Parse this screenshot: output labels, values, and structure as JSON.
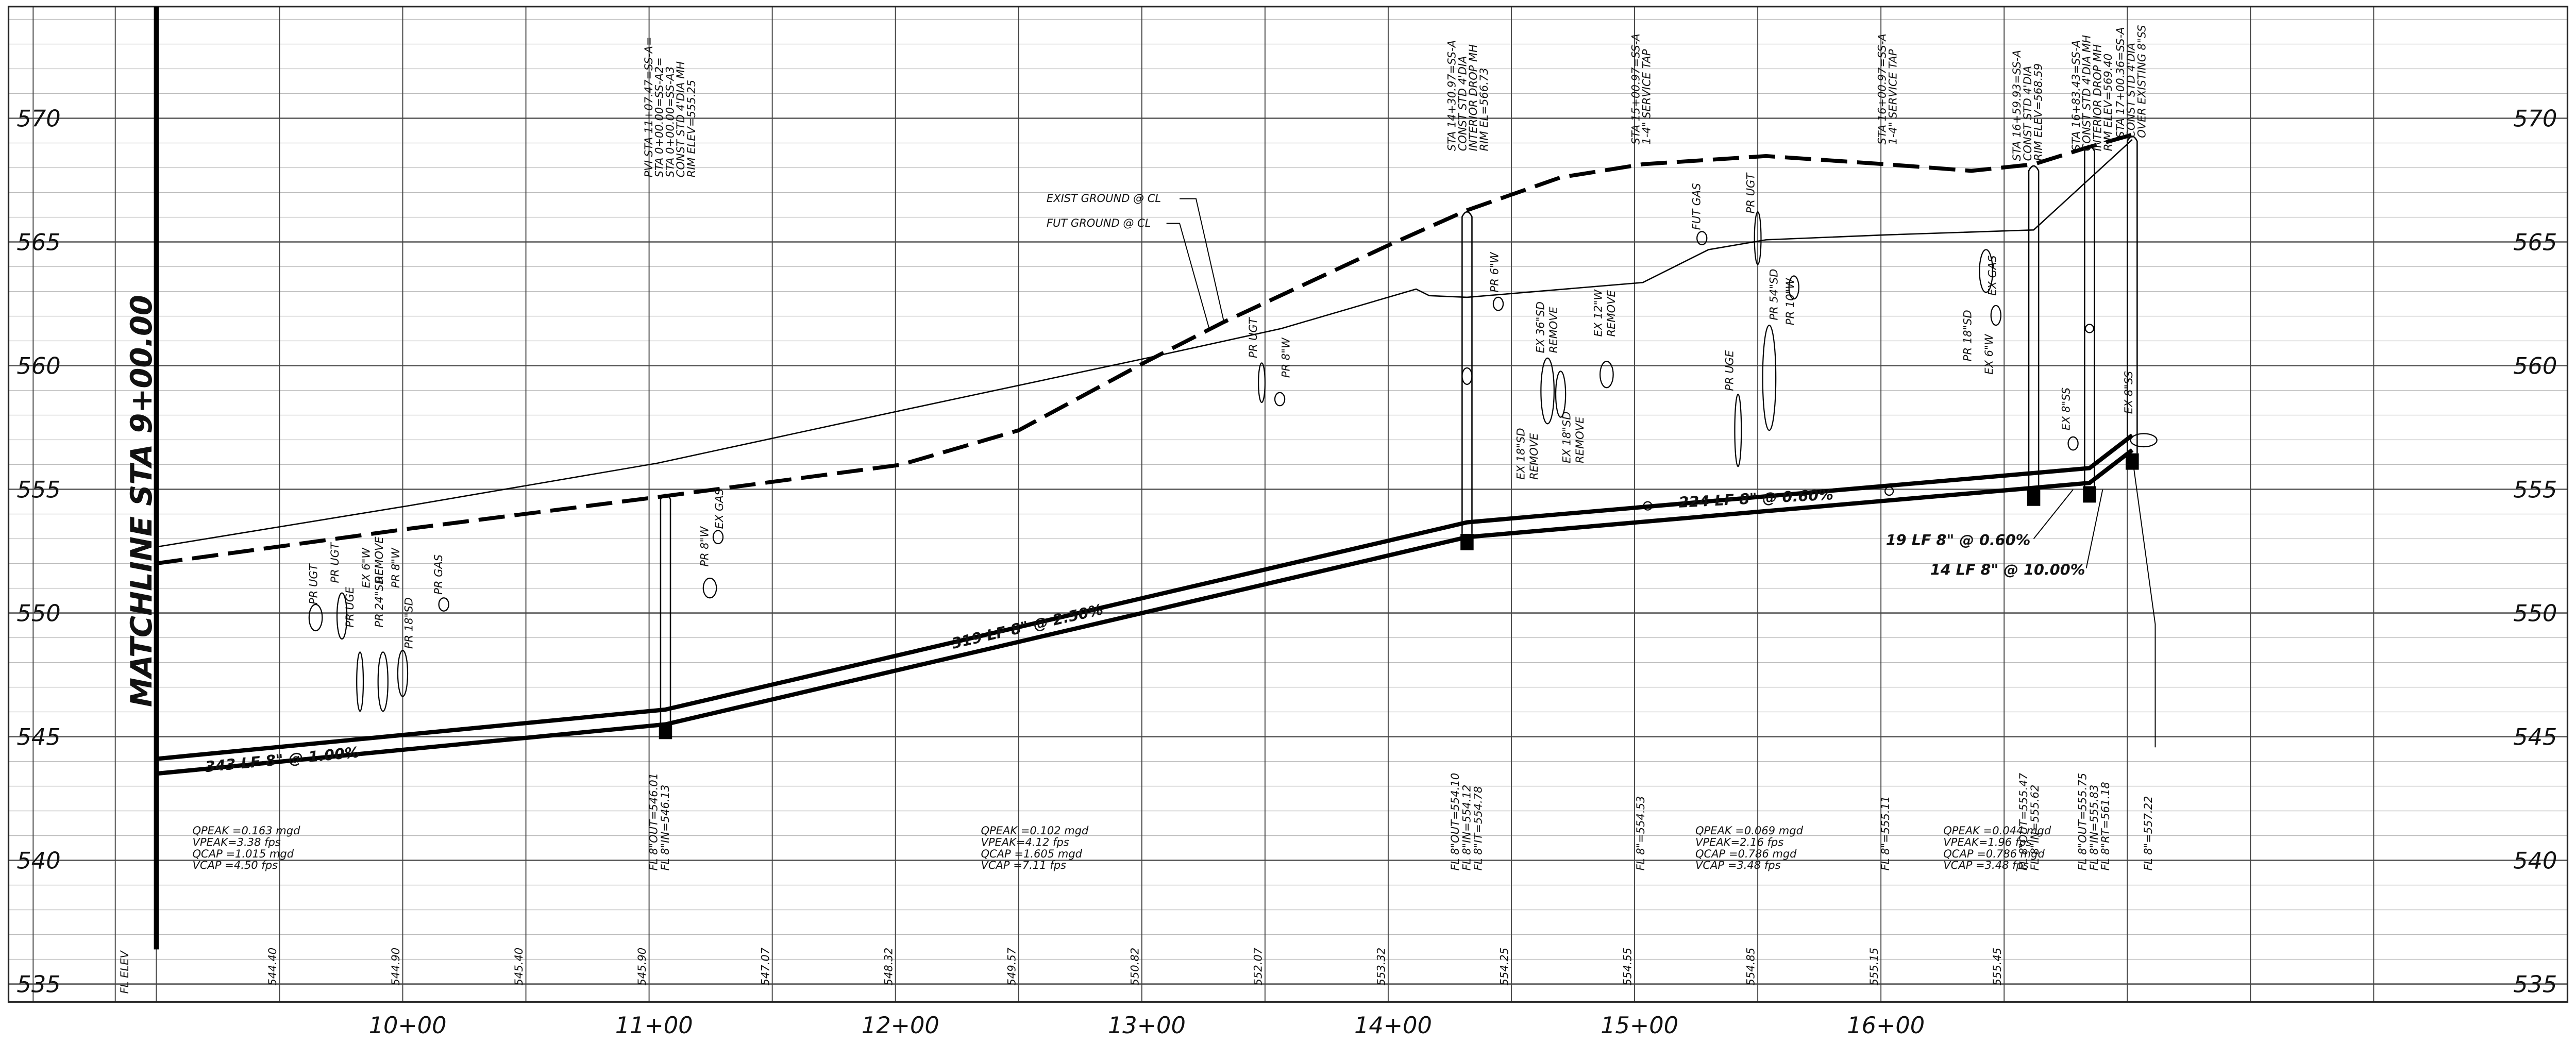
{
  "elevations": [
    570,
    565,
    560,
    555,
    550,
    545,
    540,
    535
  ],
  "stations": [
    "10+00",
    "11+00",
    "12+00",
    "13+00",
    "14+00",
    "15+00",
    "16+00"
  ],
  "fl_elev_header": "FL ELEV",
  "fl_elevations": [
    "544.40",
    "544.90",
    "545.40",
    "545.90",
    "547.07",
    "548.32",
    "549.57",
    "550.82",
    "552.07",
    "553.32",
    "554.25",
    "554.55",
    "554.85",
    "555.15",
    "555.45"
  ],
  "matchline": "MATCHLINE STA 9+00.00",
  "ground_labels": [
    "EXIST GROUND @ CL",
    "FUT GROUND @ CL"
  ],
  "pipe_labels": [
    "343 LF 8\" @ 1.00%",
    "319 LF 8\" @ 2.50%",
    "224 LF 8\" @ 0.60%",
    "19 LF 8\" @ 0.60%",
    "14 LF 8\" @ 10.00%"
  ],
  "structure_callouts": [
    [
      "PVI STA 11+07.47=SS-A=",
      "STA 0+00.00=SS-A2=",
      "STA 0+00.00=SS-A3",
      "CONST STD 4'DIA MH",
      "RIM ELEV=555.25"
    ],
    [
      "STA 14+30.97=SS-A",
      "CONST STD 4'DIA",
      "INTERIOR DROP MH",
      "RIM EL=566.73"
    ],
    [
      "STA 15+00.97=SS-A",
      "1-4\" SERVICE TAP"
    ],
    [
      "STA 16+00.97=SS-A",
      "1-4\" SERVICE TAP"
    ],
    [
      "STA 16+59.93=SS-A",
      "CONST STD 4'DIA",
      "RIM ELEV=568.59"
    ],
    [
      "STA 16+83.43=SS-A",
      "CONST STD 4'DIA MH",
      "INTERIOR DROP MH",
      "RIM ELEV=569.40"
    ],
    [
      "STA 17+00.36=SS-A",
      "CONST STD 4'DIA",
      "OVER EXISTING 8\"SS"
    ]
  ],
  "flowline_notes": [
    [
      "FL 8\"OUT=546.01",
      "FL 8\"IN=546.13"
    ],
    [
      "FL 8\"OUT=554.10",
      "FL 8\"IN=554.12",
      "FL 8\"IT=554.78"
    ],
    [
      "FL 8\"=554.53"
    ],
    [
      "FL 8\"=555.11"
    ],
    [
      "FL 8\"OUT=555.47",
      "FL 8\"IN=555.62"
    ],
    [
      "FL 8\"OUT=555.75",
      "FL 8\"IN=555.83",
      "FL 8\"RT=561.18"
    ],
    [
      "FL 8\"=557.22"
    ]
  ],
  "flow_notes": [
    [
      "QPEAK =0.163 mgd",
      "VPEAK=3.38 fps",
      "QCAP =1.015 mgd",
      "VCAP =4.50 fps"
    ],
    [
      "QPEAK =0.102 mgd",
      "VPEAK=4.12 fps",
      "QCAP =1.605 mgd",
      "VCAP =7.11 fps"
    ],
    [
      "QPEAK =0.069 mgd",
      "VPEAK=2.16 fps",
      "QCAP =0.786 mgd",
      "VCAP =3.48 fps"
    ],
    [
      "QPEAK =0.044 mgd",
      "VPEAK=1.96 fps",
      "QCAP =0.786 mgd",
      "VCAP =3.48 fps"
    ]
  ],
  "utility_labels": [
    "PR UGT",
    "PR UGT",
    "PR UGE",
    "EX 6\"W",
    "PR 24\"SD",
    "REMOVE",
    "PR 8\"W",
    "PR 18\"SD",
    "PR GAS",
    "EX GAS",
    "PR 8\"W",
    "PR UGT",
    "PR 8\"W",
    "PR 6\"W",
    "EX 36\"SD",
    "REMOVE",
    "EX 12\"W",
    "REMOVE",
    "EX 18\"SD",
    "REMOVE",
    "EX 18\"SD",
    "REMOVE",
    "FUT GAS",
    "PR UGT",
    "PR 54\"SD",
    "PR 10\"W",
    "PR UGE",
    "PR 18\"SD",
    "EX 6\"W",
    "EX GAS",
    "EX 8\"SS",
    "EX 8\"SS"
  ]
}
